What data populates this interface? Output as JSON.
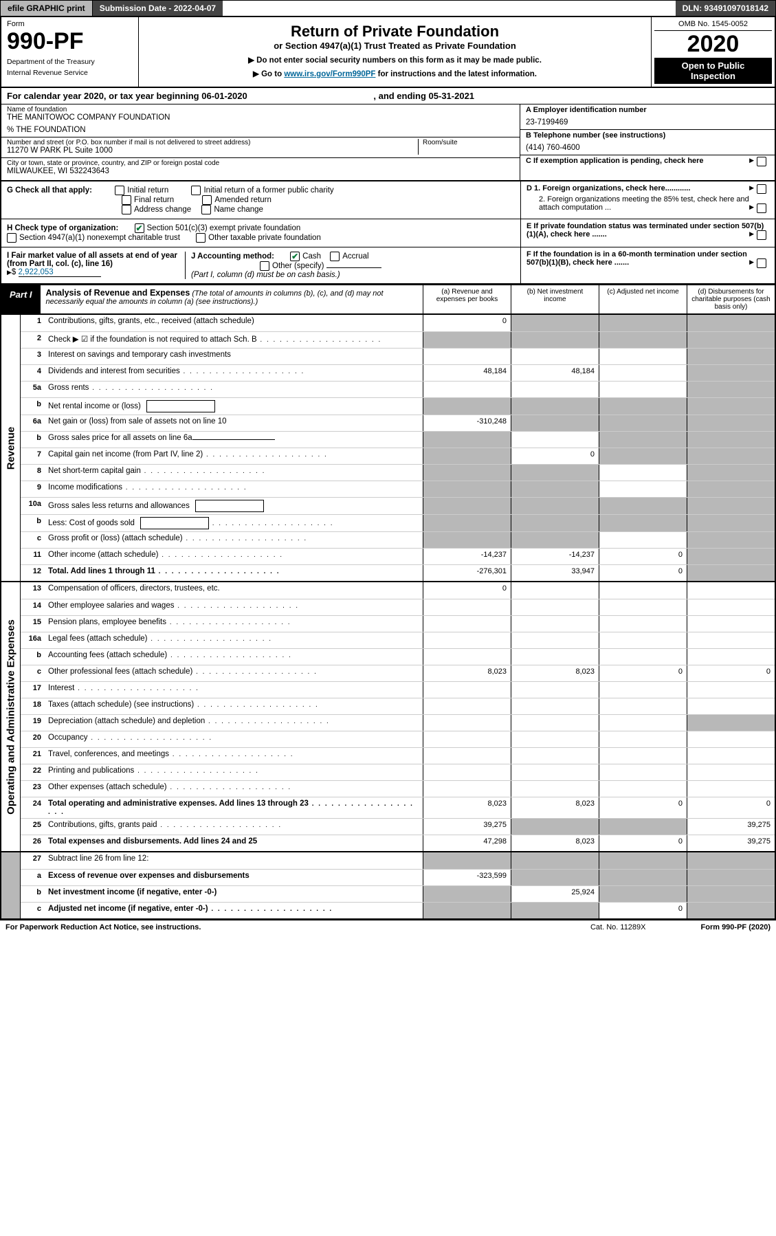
{
  "topbar": {
    "efile_btn": "efile GRAPHIC print",
    "submission_label": "Submission Date - 2022-04-07",
    "dln": "DLN: 93491097018142"
  },
  "header": {
    "form_label": "Form",
    "form_number": "990-PF",
    "dept1": "Department of the Treasury",
    "dept2": "Internal Revenue Service",
    "title": "Return of Private Foundation",
    "subtitle": "or Section 4947(a)(1) Trust Treated as Private Foundation",
    "note1": "▶ Do not enter social security numbers on this form as it may be made public.",
    "note2_pre": "▶ Go to ",
    "note2_link": "www.irs.gov/Form990PF",
    "note2_post": " for instructions and the latest information.",
    "omb": "OMB No. 1545-0052",
    "year": "2020",
    "open1": "Open to Public",
    "open2": "Inspection"
  },
  "cal_year": {
    "pre": "For calendar year 2020, or tax year beginning ",
    "begin": "06-01-2020",
    "mid": " , and ending ",
    "end": "05-31-2021"
  },
  "name_block": {
    "label": "Name of foundation",
    "name": "THE MANITOWOC COMPANY FOUNDATION",
    "care_of": "% THE FOUNDATION",
    "addr_label": "Number and street (or P.O. box number if mail is not delivered to street address)",
    "addr": "11270 W PARK PL Suite 1000",
    "room_label": "Room/suite",
    "city_label": "City or town, state or province, country, and ZIP or foreign postal code",
    "city": "MILWAUKEE, WI  532243643"
  },
  "right_block": {
    "a_label": "A Employer identification number",
    "a_val": "23-7199469",
    "b_label": "B Telephone number (see instructions)",
    "b_val": "(414) 760-4600",
    "c_label": "C If exemption application is pending, check here",
    "d1": "D 1. Foreign organizations, check here............",
    "d2": "2. Foreign organizations meeting the 85% test, check here and attach computation ...",
    "e_label": "E  If private foundation status was terminated under section 507(b)(1)(A), check here .......",
    "f_label": "F  If the foundation is in a 60-month termination under section 507(b)(1)(B), check here ......."
  },
  "g_check": {
    "label": "G Check all that apply:",
    "opts": [
      "Initial return",
      "Initial return of a former public charity",
      "Final return",
      "Amended return",
      "Address change",
      "Name change"
    ]
  },
  "h_check": {
    "label": "H Check type of organization:",
    "opt1": "Section 501(c)(3) exempt private foundation",
    "opt2": "Section 4947(a)(1) nonexempt charitable trust",
    "opt3": "Other taxable private foundation"
  },
  "i_block": {
    "label": "I Fair market value of all assets at end of year (from Part II, col. (c), line 16)",
    "value": "2,922,053"
  },
  "j_block": {
    "label": "J Accounting method:",
    "cash": "Cash",
    "accrual": "Accrual",
    "other": "Other (specify)",
    "note": "(Part I, column (d) must be on cash basis.)"
  },
  "part1": {
    "label": "Part I",
    "title": "Analysis of Revenue and Expenses",
    "title_note": " (The total of amounts in columns (b), (c), and (d) may not necessarily equal the amounts in column (a) (see instructions).)",
    "col_a": "(a)  Revenue and expenses per books",
    "col_b": "(b)  Net investment income",
    "col_c": "(c)  Adjusted net income",
    "col_d": "(d)  Disbursements for charitable purposes (cash basis only)"
  },
  "sections": {
    "revenue": "Revenue",
    "opex": "Operating and Administrative Expenses"
  },
  "lines": [
    {
      "n": "1",
      "t": "Contributions, gifts, grants, etc., received (attach schedule)",
      "a": "0",
      "b": "s",
      "c": "s",
      "d": "s"
    },
    {
      "n": "2",
      "t": "Check ▶ ☑ if the foundation is not required to attach Sch. B",
      "a": "s",
      "b": "s",
      "c": "s",
      "d": "s",
      "dots": true
    },
    {
      "n": "3",
      "t": "Interest on savings and temporary cash investments",
      "a": "",
      "b": "",
      "c": "",
      "d": "s"
    },
    {
      "n": "4",
      "t": "Dividends and interest from securities",
      "a": "48,184",
      "b": "48,184",
      "c": "",
      "d": "s",
      "dots": true
    },
    {
      "n": "5a",
      "t": "Gross rents",
      "a": "",
      "b": "",
      "c": "",
      "d": "s",
      "dots": true
    },
    {
      "n": "b",
      "t": "Net rental income or (loss)",
      "a": "s",
      "b": "s",
      "c": "s",
      "d": "s",
      "box": true
    },
    {
      "n": "6a",
      "t": "Net gain or (loss) from sale of assets not on line 10",
      "a": "-310,248",
      "b": "s",
      "c": "s",
      "d": "s"
    },
    {
      "n": "b",
      "t": "Gross sales price for all assets on line 6a",
      "a": "s",
      "b": "",
      "c": "s",
      "d": "s",
      "ul": true
    },
    {
      "n": "7",
      "t": "Capital gain net income (from Part IV, line 2)",
      "a": "s",
      "b": "0",
      "c": "s",
      "d": "s",
      "dots": true
    },
    {
      "n": "8",
      "t": "Net short-term capital gain",
      "a": "s",
      "b": "s",
      "c": "",
      "d": "s",
      "dots": true
    },
    {
      "n": "9",
      "t": "Income modifications",
      "a": "s",
      "b": "s",
      "c": "",
      "d": "s",
      "dots": true
    },
    {
      "n": "10a",
      "t": "Gross sales less returns and allowances",
      "a": "s",
      "b": "s",
      "c": "s",
      "d": "s",
      "box": true
    },
    {
      "n": "b",
      "t": "Less: Cost of goods sold",
      "a": "s",
      "b": "s",
      "c": "s",
      "d": "s",
      "box": true,
      "dots": true
    },
    {
      "n": "c",
      "t": "Gross profit or (loss) (attach schedule)",
      "a": "s",
      "b": "s",
      "c": "",
      "d": "s",
      "dots": true
    },
    {
      "n": "11",
      "t": "Other income (attach schedule)",
      "a": "-14,237",
      "b": "-14,237",
      "c": "0",
      "d": "s",
      "dots": true
    },
    {
      "n": "12",
      "t": "Total. Add lines 1 through 11",
      "a": "-276,301",
      "b": "33,947",
      "c": "0",
      "d": "s",
      "bold": true,
      "dots": true
    }
  ],
  "opex_lines": [
    {
      "n": "13",
      "t": "Compensation of officers, directors, trustees, etc.",
      "a": "0",
      "b": "",
      "c": "",
      "d": ""
    },
    {
      "n": "14",
      "t": "Other employee salaries and wages",
      "a": "",
      "b": "",
      "c": "",
      "d": "",
      "dots": true
    },
    {
      "n": "15",
      "t": "Pension plans, employee benefits",
      "a": "",
      "b": "",
      "c": "",
      "d": "",
      "dots": true
    },
    {
      "n": "16a",
      "t": "Legal fees (attach schedule)",
      "a": "",
      "b": "",
      "c": "",
      "d": "",
      "dots": true
    },
    {
      "n": "b",
      "t": "Accounting fees (attach schedule)",
      "a": "",
      "b": "",
      "c": "",
      "d": "",
      "dots": true
    },
    {
      "n": "c",
      "t": "Other professional fees (attach schedule)",
      "a": "8,023",
      "b": "8,023",
      "c": "0",
      "d": "0",
      "dots": true
    },
    {
      "n": "17",
      "t": "Interest",
      "a": "",
      "b": "",
      "c": "",
      "d": "",
      "dots": true
    },
    {
      "n": "18",
      "t": "Taxes (attach schedule) (see instructions)",
      "a": "",
      "b": "",
      "c": "",
      "d": "",
      "dots": true
    },
    {
      "n": "19",
      "t": "Depreciation (attach schedule) and depletion",
      "a": "",
      "b": "",
      "c": "",
      "d": "s",
      "dots": true
    },
    {
      "n": "20",
      "t": "Occupancy",
      "a": "",
      "b": "",
      "c": "",
      "d": "",
      "dots": true
    },
    {
      "n": "21",
      "t": "Travel, conferences, and meetings",
      "a": "",
      "b": "",
      "c": "",
      "d": "",
      "dots": true
    },
    {
      "n": "22",
      "t": "Printing and publications",
      "a": "",
      "b": "",
      "c": "",
      "d": "",
      "dots": true
    },
    {
      "n": "23",
      "t": "Other expenses (attach schedule)",
      "a": "",
      "b": "",
      "c": "",
      "d": "",
      "dots": true
    },
    {
      "n": "24",
      "t": "Total operating and administrative expenses. Add lines 13 through 23",
      "a": "8,023",
      "b": "8,023",
      "c": "0",
      "d": "0",
      "bold": true,
      "dots": true
    },
    {
      "n": "25",
      "t": "Contributions, gifts, grants paid",
      "a": "39,275",
      "b": "s",
      "c": "s",
      "d": "39,275",
      "dots": true
    },
    {
      "n": "26",
      "t": "Total expenses and disbursements. Add lines 24 and 25",
      "a": "47,298",
      "b": "8,023",
      "c": "0",
      "d": "39,275",
      "bold": true
    }
  ],
  "bottom_lines": [
    {
      "n": "27",
      "t": "Subtract line 26 from line 12:",
      "a": "s",
      "b": "s",
      "c": "s",
      "d": "s"
    },
    {
      "n": "a",
      "t": "Excess of revenue over expenses and disbursements",
      "a": "-323,599",
      "b": "s",
      "c": "s",
      "d": "s",
      "bold": true
    },
    {
      "n": "b",
      "t": "Net investment income (if negative, enter -0-)",
      "a": "s",
      "b": "25,924",
      "c": "s",
      "d": "s",
      "bold": true
    },
    {
      "n": "c",
      "t": "Adjusted net income (if negative, enter -0-)",
      "a": "s",
      "b": "s",
      "c": "0",
      "d": "s",
      "bold": true,
      "dots": true
    }
  ],
  "footer": {
    "left": "For Paperwork Reduction Act Notice, see instructions.",
    "mid": "Cat. No. 11289X",
    "right": "Form 990-PF (2020)"
  },
  "colors": {
    "shade": "#b8b8b8",
    "accent_green": "#0a7a3a",
    "link": "#006699"
  }
}
